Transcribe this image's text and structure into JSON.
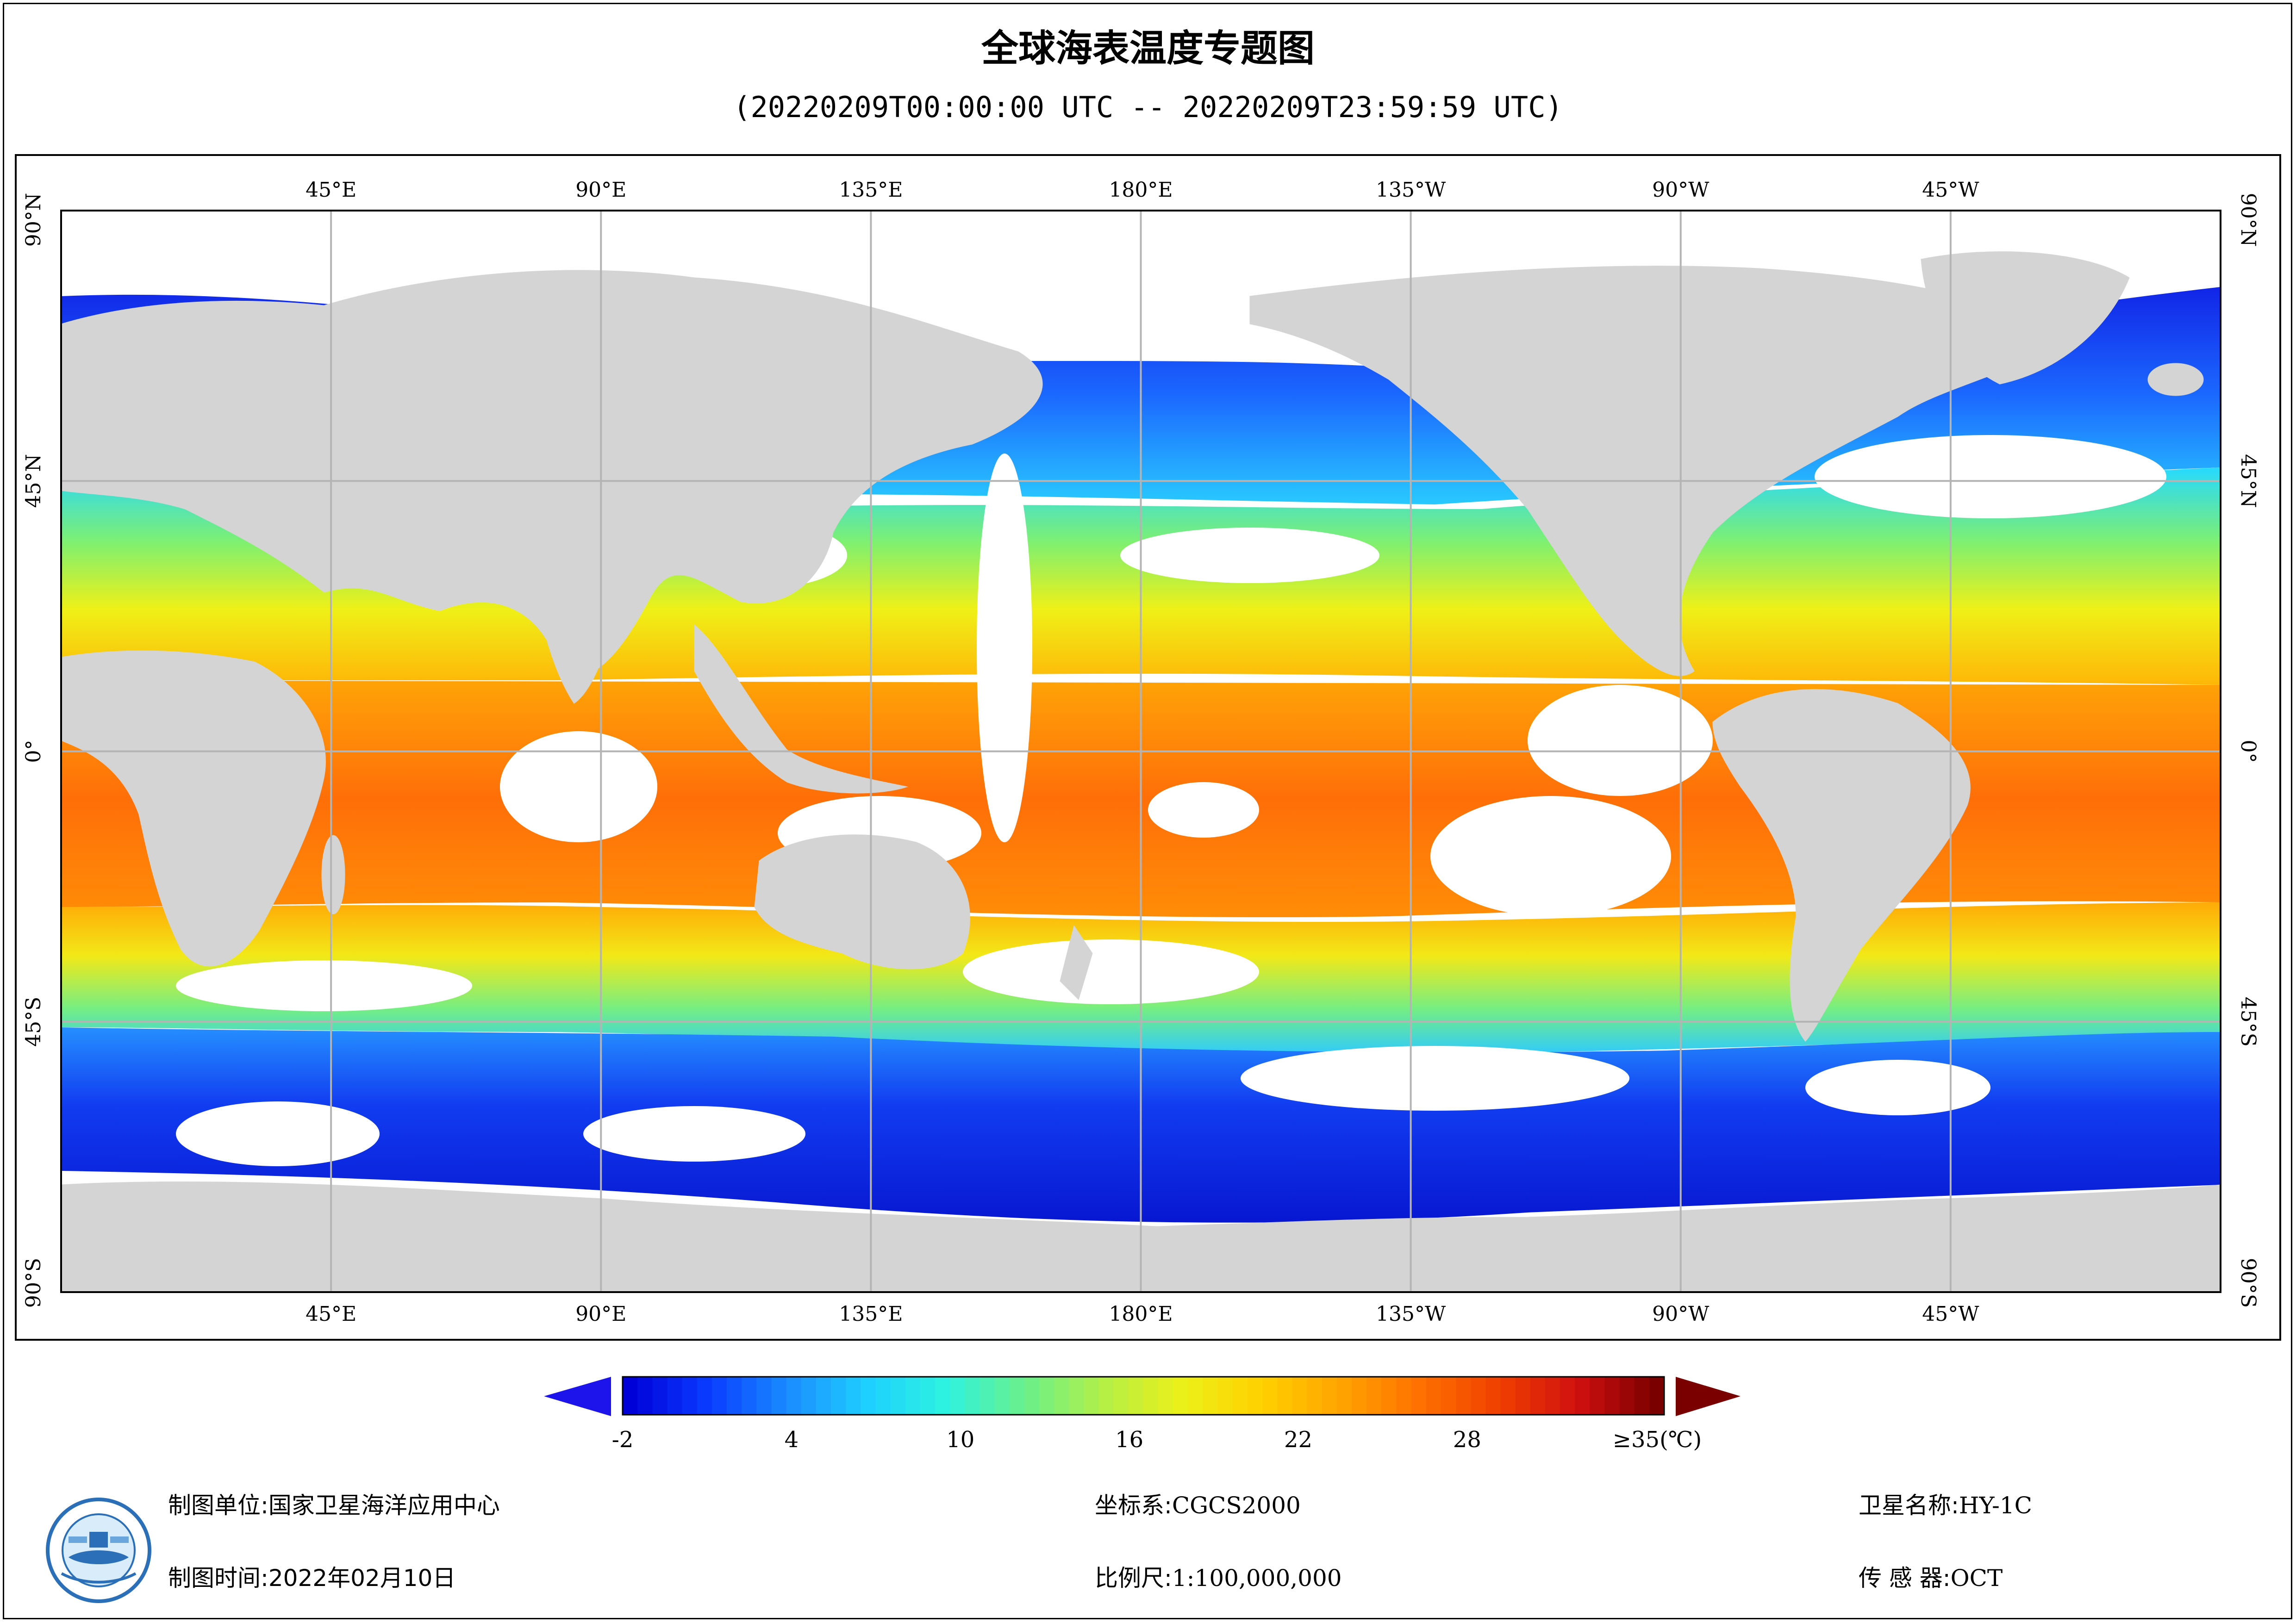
{
  "title": "全球海表温度专题图",
  "subtitle": "(20220209T00:00:00 UTC -- 20220209T23:59:59 UTC)",
  "map": {
    "lon_labels": [
      "45°E",
      "90°E",
      "135°E",
      "180°E",
      "135°W",
      "90°W",
      "45°W"
    ],
    "lat_labels": [
      "90°N",
      "45°N",
      "0°",
      "45°S",
      "90°S"
    ],
    "projection_extent": {
      "lon_min": 0,
      "lon_max": 360,
      "lat_min": -90,
      "lat_max": 90
    },
    "colors": {
      "land": "#d4d4d4",
      "cloud_nodata": "#ffffff",
      "grid": "#b4b4b4"
    }
  },
  "colorbar": {
    "ticks": [
      "-2",
      "4",
      "10",
      "16",
      "22",
      "28",
      "≥35(℃)"
    ],
    "tick_values": [
      -2,
      4,
      10,
      16,
      22,
      28,
      35
    ],
    "range": [
      -2,
      35
    ],
    "under_color": "#1c14ea",
    "over_color": "#7a0000",
    "colors": [
      "#0000d9",
      "#0a3cff",
      "#1a8cff",
      "#1ed0ff",
      "#2ef2e0",
      "#6af08a",
      "#b4f046",
      "#ecf018",
      "#ffd000",
      "#ffa400",
      "#ff7000",
      "#f04000",
      "#d01010",
      "#7a0000"
    ]
  },
  "info": {
    "producer_key": "制图单位:",
    "producer_value": "国家卫星海洋应用中心",
    "time_key": "制图时间:",
    "time_value": "2022年02月10日",
    "crs_key": "坐标系:",
    "crs_value": "CGCS2000",
    "scale_key": "比例尺:",
    "scale_value": "1:100,000,000",
    "satellite_key": "卫星名称:",
    "satellite_value": "HY-1C",
    "sensor_key": "传 感 器:",
    "sensor_value": "OCT"
  }
}
